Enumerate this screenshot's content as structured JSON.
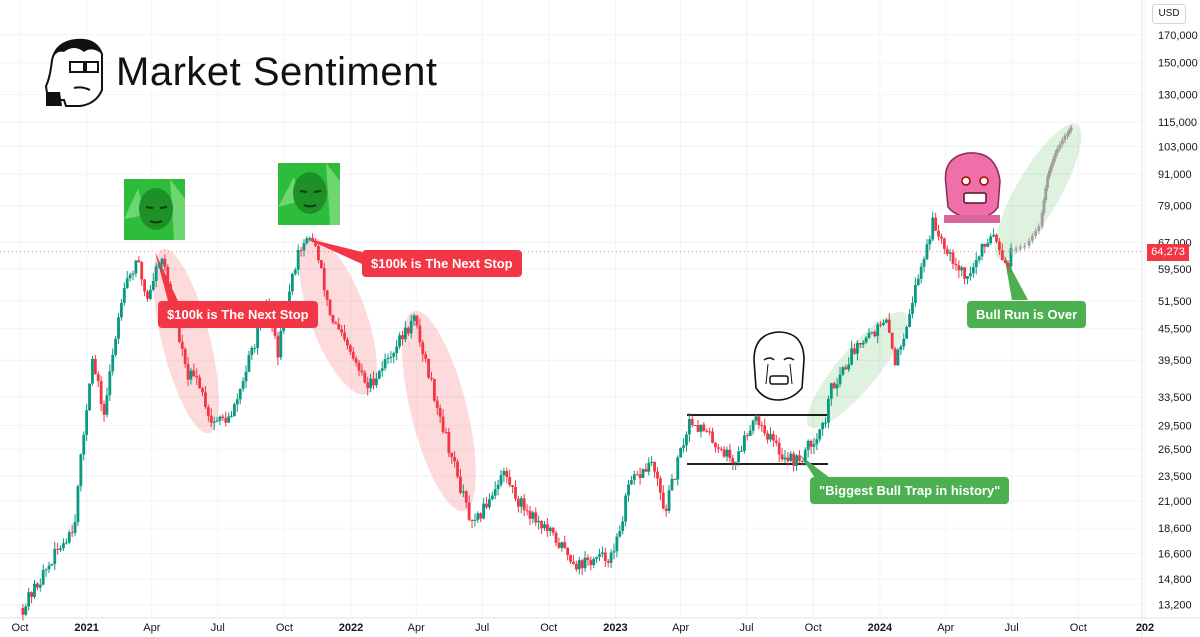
{
  "header": {
    "title": "Market Sentiment",
    "currency": "USD"
  },
  "price_tag": "64,273",
  "callouts": {
    "c1": "$100k is The Next Stop",
    "c2": "$100k is The Next Stop",
    "c3": "\"Biggest Bull Trap in history\"",
    "c4": "Bull Run is Over"
  },
  "colors": {
    "up": "#089981",
    "down": "#f23645",
    "red_callout": "#f23645",
    "green_callout": "#4caf50"
  },
  "icons": [
    "trader-face-icon",
    "green-wojak-icon",
    "green-wojak-icon",
    "crying-wojak-icon",
    "pink-wojak-icon"
  ],
  "chart_data": {
    "type": "candlestick",
    "y_scale": "log",
    "ylim": [
      12600,
      190000
    ],
    "y_ticks": [
      "170,000",
      "150,000",
      "130,000",
      "115,000",
      "103,000",
      "91,000",
      "79,000",
      "67,000",
      "59,500",
      "51,500",
      "45,500",
      "39,500",
      "33,500",
      "29,500",
      "26,500",
      "23,500",
      "21,000",
      "18,600",
      "16,600",
      "14,800",
      "13,200"
    ],
    "x_ticks": [
      {
        "label": "Oct",
        "bold": false
      },
      {
        "label": "2021",
        "bold": true
      },
      {
        "label": "Apr",
        "bold": false
      },
      {
        "label": "Jul",
        "bold": false
      },
      {
        "label": "Oct",
        "bold": false
      },
      {
        "label": "2022",
        "bold": true
      },
      {
        "label": "Apr",
        "bold": false
      },
      {
        "label": "Jul",
        "bold": false
      },
      {
        "label": "Oct",
        "bold": false
      },
      {
        "label": "2023",
        "bold": true
      },
      {
        "label": "Apr",
        "bold": false
      },
      {
        "label": "Jul",
        "bold": false
      },
      {
        "label": "Oct",
        "bold": false
      },
      {
        "label": "2024",
        "bold": true
      },
      {
        "label": "Apr",
        "bold": false
      },
      {
        "label": "Jul",
        "bold": false
      },
      {
        "label": "Oct",
        "bold": false
      },
      {
        "label": "202",
        "bold": true
      }
    ],
    "x_range": [
      "2020-10-01",
      "2025-01-01"
    ],
    "anchors": [
      [
        "2020-10-05",
        13000
      ],
      [
        "2020-12-15",
        19000
      ],
      [
        "2021-01-08",
        40000
      ],
      [
        "2021-01-25",
        31000
      ],
      [
        "2021-02-21",
        56000
      ],
      [
        "2021-03-13",
        61000
      ],
      [
        "2021-03-25",
        52000
      ],
      [
        "2021-04-14",
        64000
      ],
      [
        "2021-05-19",
        37000
      ],
      [
        "2021-06-05",
        36000
      ],
      [
        "2021-06-22",
        30000
      ],
      [
        "2021-07-20",
        30500
      ],
      [
        "2021-09-06",
        51000
      ],
      [
        "2021-09-22",
        41000
      ],
      [
        "2021-10-20",
        65000
      ],
      [
        "2021-11-10",
        68500
      ],
      [
        "2021-12-04",
        48000
      ],
      [
        "2022-01-24",
        35000
      ],
      [
        "2022-03-29",
        47500
      ],
      [
        "2022-05-12",
        28000
      ],
      [
        "2022-06-18",
        18500
      ],
      [
        "2022-07-30",
        24000
      ],
      [
        "2022-08-20",
        21000
      ],
      [
        "2022-09-20",
        19000
      ],
      [
        "2022-11-09",
        15800
      ],
      [
        "2022-12-30",
        16500
      ],
      [
        "2023-01-20",
        22500
      ],
      [
        "2023-02-20",
        25000
      ],
      [
        "2023-03-10",
        20000
      ],
      [
        "2023-04-14",
        30500
      ],
      [
        "2023-06-15",
        25000
      ],
      [
        "2023-07-12",
        31000
      ],
      [
        "2023-08-17",
        26000
      ],
      [
        "2023-09-11",
        25000
      ],
      [
        "2023-10-20",
        30500
      ],
      [
        "2023-10-24",
        34500
      ],
      [
        "2023-12-08",
        44000
      ],
      [
        "2024-01-11",
        46500
      ],
      [
        "2024-01-23",
        39000
      ],
      [
        "2024-02-28",
        61000
      ],
      [
        "2024-03-14",
        73000
      ],
      [
        "2024-04-13",
        62000
      ],
      [
        "2024-05-01",
        57000
      ],
      [
        "2024-06-05",
        71000
      ],
      [
        "2024-06-24",
        60500
      ],
      [
        "2024-07-01",
        64273
      ]
    ],
    "projection": [
      [
        "2024-07-01",
        64273
      ],
      [
        "2024-07-25",
        66000
      ],
      [
        "2024-08-12",
        72000
      ],
      [
        "2024-08-22",
        90000
      ],
      [
        "2024-09-02",
        100000
      ],
      [
        "2024-09-16",
        108000
      ],
      [
        "2024-09-23",
        112000
      ]
    ]
  }
}
